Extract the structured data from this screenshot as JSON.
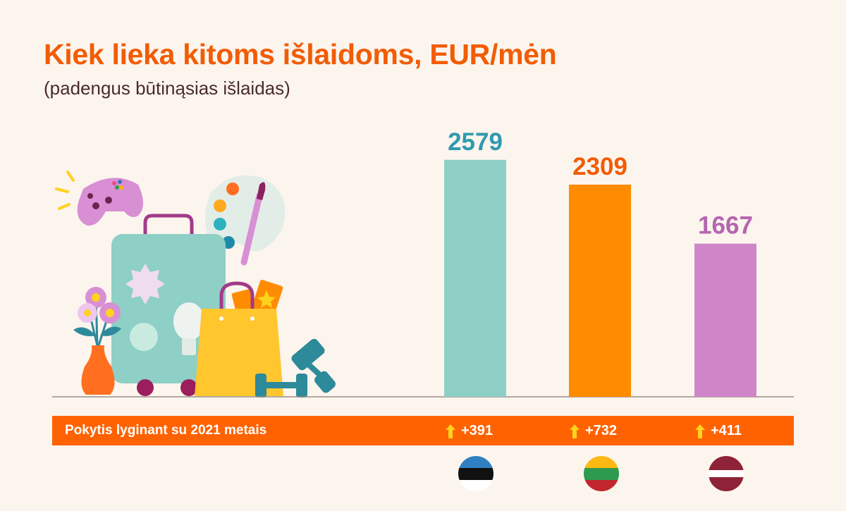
{
  "title": "Kiek lieka kitoms išlaidoms, EUR/mėn",
  "subtitle": "(padengus būtinąsias išlaidas)",
  "chart_data": {
    "type": "bar",
    "unit": "EUR/mėn",
    "categories": [
      "EE",
      "LT",
      "LV"
    ],
    "values": [
      2579,
      2309,
      1667
    ],
    "value_labels": [
      "2579",
      "2309",
      "1667"
    ],
    "colors": [
      "#8ecfc6",
      "#ff8c00",
      "#cf86c8"
    ],
    "label_colors": [
      "#2f9ab0",
      "#f25c05",
      "#b566b0"
    ],
    "ylim": [
      0,
      2700
    ],
    "grid": false,
    "legend": "none"
  },
  "change_band": {
    "label": "Pokytis lyginant su 2021 metais",
    "changes": [
      "+391",
      "+732",
      "+411"
    ],
    "arrow_color": "#ffd21f"
  },
  "flags": [
    {
      "country": "estonia-flag-icon",
      "stripes": [
        "#111111",
        "#2e80c2",
        "#ffffff"
      ]
    },
    {
      "country": "lithuania-flag-icon",
      "stripes": [
        "#fdb913",
        "#2e9a4e",
        "#c1272d"
      ]
    },
    {
      "country": "latvia-flag-icon",
      "stripes": [
        "#8e2237",
        "#ffffff",
        "#8e2237"
      ]
    }
  ]
}
